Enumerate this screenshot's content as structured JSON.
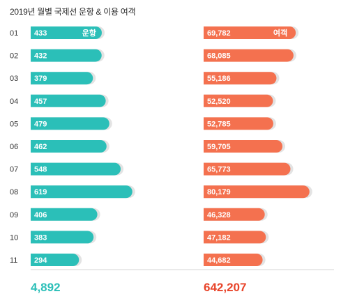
{
  "chart_data": {
    "type": "bar",
    "title": "2019년 월별 국제선 운항 & 이용 여객",
    "categories": [
      "01",
      "02",
      "03",
      "04",
      "05",
      "06",
      "07",
      "08",
      "09",
      "10",
      "11"
    ],
    "series": [
      {
        "name": "운항",
        "values": [
          433,
          432,
          379,
          457,
          479,
          462,
          548,
          619,
          406,
          383,
          294
        ],
        "labels": [
          "433",
          "432",
          "379",
          "457",
          "479",
          "462",
          "548",
          "619",
          "406",
          "383",
          "294"
        ],
        "total": "4,892",
        "color": "#2bbfb8"
      },
      {
        "name": "여객",
        "values": [
          69782,
          68085,
          55186,
          52520,
          52785,
          59705,
          65773,
          80179,
          46328,
          47182,
          44682
        ],
        "labels": [
          "69,782",
          "68,085",
          "55,186",
          "52,520",
          "52,785",
          "59,705",
          "65,773",
          "80,179",
          "46,328",
          "47,182",
          "44,682"
        ],
        "total": "642,207",
        "color": "#f4714f"
      }
    ]
  }
}
